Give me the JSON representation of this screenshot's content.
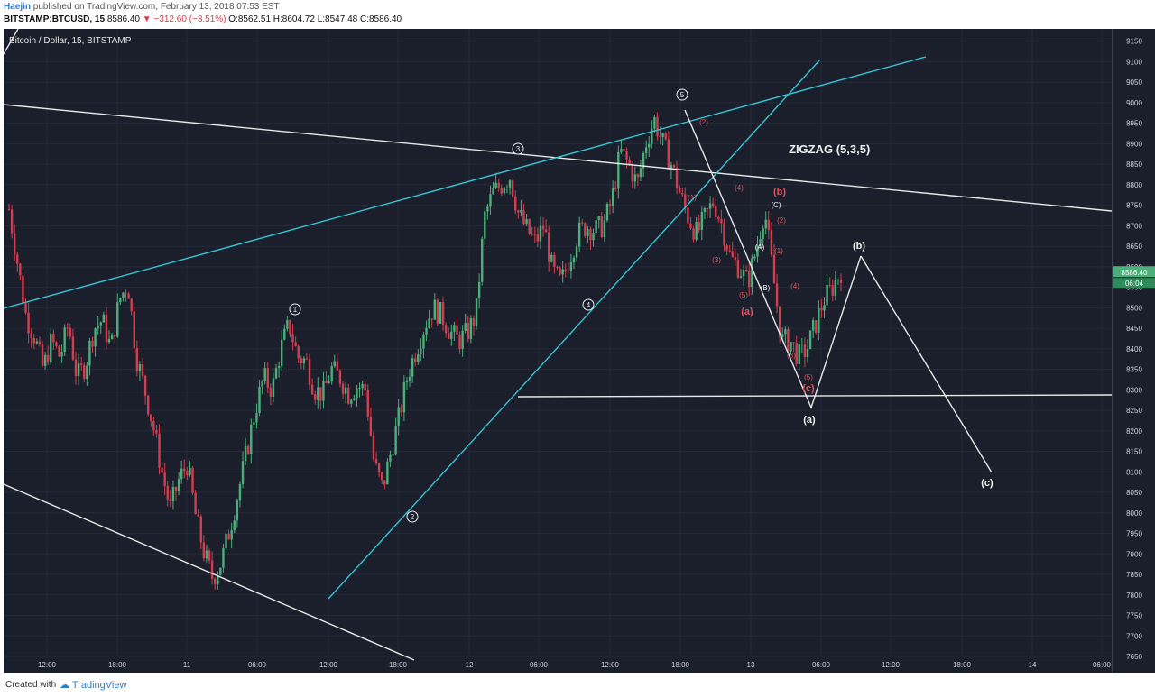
{
  "header": {
    "user": "Haejin",
    "published": "published on TradingView.com, February 13, 2018 07:53 EST",
    "symbol": "BITSTAMP:BTCUSD, 15",
    "last": "8586.40",
    "change": "−312.60 (−3.51%)",
    "ohlc": "O:8562.51 H:8604.72 L:8547.48 C:8586.40"
  },
  "symbol_label": "Bitcoin / Dollar, 15, BITSTAMP",
  "price_tag": "8586.40",
  "time_tag": "06:04",
  "footer": {
    "created": "Created with",
    "brand": "TradingView"
  },
  "colors": {
    "bg": "#1b1e2b",
    "up": "#4caf7a",
    "down": "#d23e4e",
    "cyan": "#35c6d6",
    "white": "#f0f0f0",
    "wave_red": "#d9555f"
  },
  "chart_data": {
    "type": "candlestick",
    "title": "Bitcoin / Dollar, 15, BITSTAMP",
    "ylim": [
      7650,
      9180
    ],
    "y_ticks": [
      9150,
      9100,
      9050,
      9000,
      8950,
      8900,
      8850,
      8800,
      8750,
      8700,
      8650,
      8600,
      8550,
      8500,
      8450,
      8400,
      8350,
      8300,
      8250,
      8200,
      8150,
      8100,
      8050,
      8000,
      7950,
      7900,
      7850,
      7800,
      7750,
      7700,
      7650
    ],
    "x_ticks": [
      "12:00",
      "18:00",
      "11",
      "06:00",
      "12:00",
      "18:00",
      "12",
      "06:00",
      "12:00",
      "18:00",
      "13",
      "06:00",
      "12:00",
      "18:00",
      "14",
      "06:00"
    ],
    "close_path": [
      8740,
      8610,
      8480,
      8430,
      8350,
      8420,
      8380,
      8460,
      8330,
      8360,
      8450,
      8470,
      8400,
      8520,
      8560,
      8380,
      8300,
      8210,
      8100,
      8010,
      8080,
      8120,
      7990,
      7900,
      7840,
      7880,
      7960,
      8050,
      8150,
      8250,
      8330,
      8300,
      8400,
      8460,
      8380,
      8370,
      8300,
      8290,
      8350,
      8330,
      8290,
      8310,
      8300,
      8120,
      8060,
      8150,
      8240,
      8340,
      8400,
      8460,
      8500,
      8480,
      8440,
      8420,
      8440,
      8480,
      8720,
      8780,
      8800,
      8820,
      8730,
      8690,
      8660,
      8700,
      8590,
      8560,
      8620,
      8680,
      8700,
      8690,
      8700,
      8760,
      8880,
      8850,
      8800,
      8900,
      8960,
      8900,
      8850,
      8780,
      8720,
      8680,
      8720,
      8760,
      8700,
      8620,
      8600,
      8560,
      8640,
      8740,
      8580,
      8420,
      8420,
      8380,
      8400,
      8460,
      8520,
      8550,
      8590
    ],
    "annotations": {
      "title": "ZIGZAG (5,3,5)",
      "white_circle": [
        "1",
        "2",
        "3",
        "4",
        "5"
      ],
      "white_paren": [
        "(b)",
        "(a)",
        "(c)",
        "(A)",
        "(B)",
        "(C)"
      ],
      "red_paren": [
        "(b)",
        "(a)",
        "(c)",
        "(1)",
        "(2)",
        "(3)",
        "(4)",
        "(5)",
        "(1)",
        "(2)",
        "(3)",
        "(4)",
        "(5)"
      ]
    }
  }
}
